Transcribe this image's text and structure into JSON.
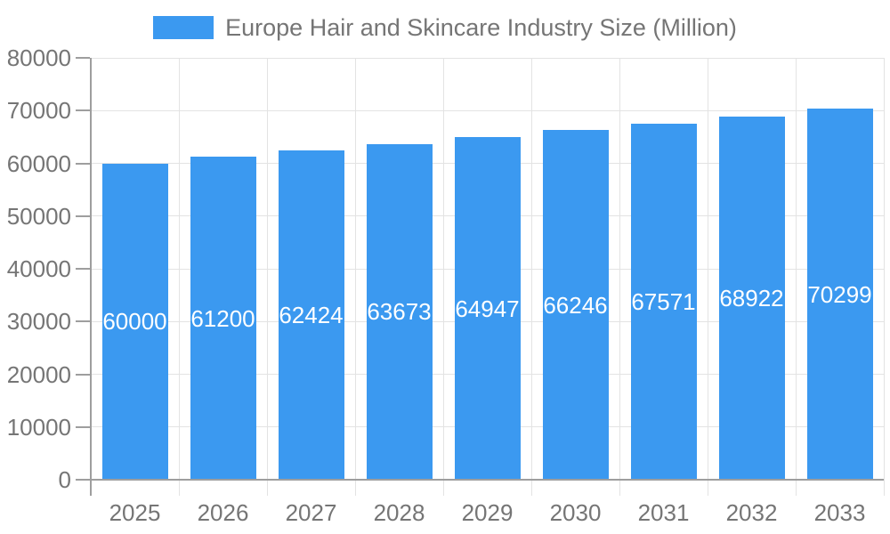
{
  "legend": {
    "swatch_color": "#3B99F0"
  },
  "colors": {
    "bar": "#3B99F0",
    "bar_label": "#ffffff",
    "axis_text": "#757575",
    "grid": "#e3e3e3",
    "axis_line": "#9e9e9e",
    "background": "#ffffff"
  },
  "chart_data": {
    "type": "bar",
    "title": "Europe Hair and Skincare Industry Size (Million)",
    "categories": [
      "2025",
      "2026",
      "2027",
      "2028",
      "2029",
      "2030",
      "2031",
      "2032",
      "2033"
    ],
    "values": [
      60000,
      61200,
      62424,
      63673,
      64947,
      66246,
      67571,
      68922,
      70299
    ],
    "xlabel": "",
    "ylabel": "",
    "ylim": [
      0,
      80000
    ],
    "ytick_step": 10000,
    "ytick_labels": [
      "0",
      "10000",
      "20000",
      "30000",
      "40000",
      "50000",
      "60000",
      "70000",
      "80000"
    ],
    "grid": true,
    "legend_position": "top",
    "bar_value_labels": "inside-middle"
  }
}
